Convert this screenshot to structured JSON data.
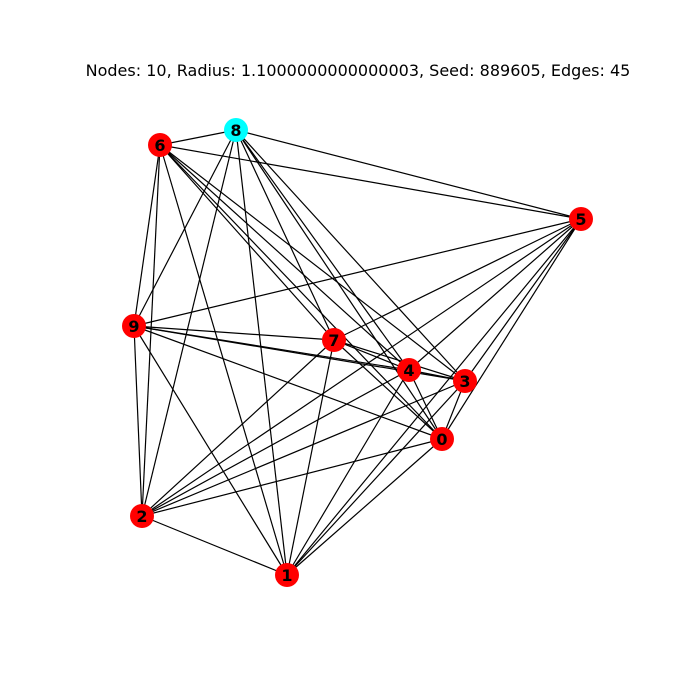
{
  "title": "Nodes: 10, Radius: 1.1000000000000003, Seed: 889605, Edges: 45",
  "colors": {
    "default_node": "#ff0000",
    "highlight_node": "#00ffff",
    "edge": "#000000",
    "background": "#ffffff"
  },
  "nodes": [
    {
      "id": "0",
      "label": "0",
      "highlighted": false
    },
    {
      "id": "1",
      "label": "1",
      "highlighted": false
    },
    {
      "id": "2",
      "label": "2",
      "highlighted": false
    },
    {
      "id": "3",
      "label": "3",
      "highlighted": false
    },
    {
      "id": "4",
      "label": "4",
      "highlighted": false
    },
    {
      "id": "5",
      "label": "5",
      "highlighted": false
    },
    {
      "id": "6",
      "label": "6",
      "highlighted": false
    },
    {
      "id": "7",
      "label": "7",
      "highlighted": false
    },
    {
      "id": "8",
      "label": "8",
      "highlighted": true
    },
    {
      "id": "9",
      "label": "9",
      "highlighted": false
    }
  ],
  "edges": [
    [
      "0",
      "1"
    ],
    [
      "0",
      "2"
    ],
    [
      "0",
      "3"
    ],
    [
      "0",
      "4"
    ],
    [
      "0",
      "5"
    ],
    [
      "0",
      "6"
    ],
    [
      "0",
      "7"
    ],
    [
      "0",
      "8"
    ],
    [
      "0",
      "9"
    ],
    [
      "1",
      "2"
    ],
    [
      "1",
      "3"
    ],
    [
      "1",
      "4"
    ],
    [
      "1",
      "5"
    ],
    [
      "1",
      "6"
    ],
    [
      "1",
      "7"
    ],
    [
      "1",
      "8"
    ],
    [
      "1",
      "9"
    ],
    [
      "2",
      "3"
    ],
    [
      "2",
      "4"
    ],
    [
      "2",
      "5"
    ],
    [
      "2",
      "6"
    ],
    [
      "2",
      "7"
    ],
    [
      "2",
      "8"
    ],
    [
      "2",
      "9"
    ],
    [
      "3",
      "4"
    ],
    [
      "3",
      "5"
    ],
    [
      "3",
      "6"
    ],
    [
      "3",
      "7"
    ],
    [
      "3",
      "8"
    ],
    [
      "3",
      "9"
    ],
    [
      "4",
      "5"
    ],
    [
      "4",
      "6"
    ],
    [
      "4",
      "7"
    ],
    [
      "4",
      "8"
    ],
    [
      "4",
      "9"
    ],
    [
      "5",
      "6"
    ],
    [
      "5",
      "7"
    ],
    [
      "5",
      "8"
    ],
    [
      "5",
      "9"
    ],
    [
      "6",
      "7"
    ],
    [
      "6",
      "8"
    ],
    [
      "6",
      "9"
    ],
    [
      "7",
      "8"
    ],
    [
      "7",
      "9"
    ],
    [
      "8",
      "9"
    ]
  ]
}
